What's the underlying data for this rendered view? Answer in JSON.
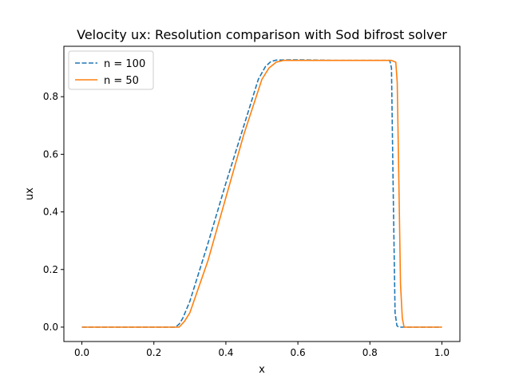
{
  "chart_data": {
    "type": "line",
    "title": "Velocity ux: Resolution comparison with Sod bifrost solver",
    "xlabel": "x",
    "ylabel": "ux",
    "xlim": [
      -0.05,
      1.05
    ],
    "ylim": [
      -0.05,
      0.975
    ],
    "xticks": [
      0.0,
      0.2,
      0.4,
      0.6,
      0.8,
      1.0
    ],
    "xtick_labels": [
      "0.0",
      "0.2",
      "0.4",
      "0.6",
      "0.8",
      "1.0"
    ],
    "yticks": [
      0.0,
      0.2,
      0.4,
      0.6,
      0.8
    ],
    "ytick_labels": [
      "0.0",
      "0.2",
      "0.4",
      "0.6",
      "0.8"
    ],
    "grid": false,
    "legend_position": "upper-left",
    "series": [
      {
        "name": "n = 100",
        "color": "#1f77b4",
        "style": "dashed",
        "x": [
          0.0,
          0.26,
          0.27,
          0.28,
          0.3,
          0.35,
          0.4,
          0.45,
          0.49,
          0.51,
          0.525,
          0.54,
          0.6,
          0.7,
          0.8,
          0.855,
          0.86,
          0.865,
          0.87,
          0.875,
          0.88,
          1.0
        ],
        "y": [
          0.0,
          0.0,
          0.01,
          0.03,
          0.09,
          0.29,
          0.5,
          0.7,
          0.86,
          0.905,
          0.922,
          0.927,
          0.928,
          0.926,
          0.926,
          0.926,
          0.9,
          0.45,
          0.05,
          0.005,
          0.0,
          0.0
        ]
      },
      {
        "name": "n = 50",
        "color": "#ff7f0e",
        "style": "solid",
        "x": [
          0.0,
          0.27,
          0.285,
          0.3,
          0.35,
          0.4,
          0.45,
          0.5,
          0.52,
          0.54,
          0.56,
          0.6,
          0.7,
          0.8,
          0.86,
          0.872,
          0.876,
          0.88,
          0.885,
          0.89,
          0.895,
          1.0
        ],
        "y": [
          0.0,
          0.0,
          0.02,
          0.05,
          0.23,
          0.45,
          0.67,
          0.86,
          0.9,
          0.92,
          0.926,
          0.926,
          0.926,
          0.926,
          0.926,
          0.92,
          0.85,
          0.55,
          0.15,
          0.03,
          0.0,
          0.0
        ]
      }
    ]
  }
}
